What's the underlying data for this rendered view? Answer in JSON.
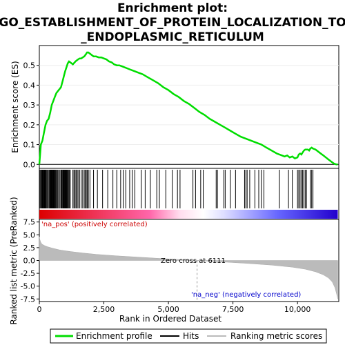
{
  "chart_data": {
    "type": "line",
    "title": "Enrichment plot:\nGO_ESTABLISHMENT_OF_PROTEIN_LOCALIZATION_TO\n_ENDOPLASMIC_RETICULUM",
    "title_lines": [
      "Enrichment plot:",
      "GO_ESTABLISHMENT_OF_PROTEIN_LOCALIZATION_TO",
      "_ENDOPLASMIC_RETICULUM"
    ],
    "top_panel": {
      "ylabel": "Enrichment score (ES)",
      "ylim": [
        -0.02,
        0.6
      ],
      "yticks": [
        0.0,
        0.1,
        0.2,
        0.3,
        0.4,
        0.5
      ],
      "ytick_labels": [
        "0.0",
        "0.1",
        "0.2",
        "0.3",
        "0.4",
        "0.5"
      ],
      "series": [
        {
          "name": "Enrichment profile",
          "color": "#00dd00",
          "x": [
            0,
            60,
            120,
            180,
            240,
            300,
            360,
            420,
            480,
            540,
            600,
            660,
            720,
            780,
            840,
            900,
            960,
            1000,
            1050,
            1100,
            1150,
            1200,
            1300,
            1400,
            1450,
            1500,
            1560,
            1620,
            1680,
            1740,
            1800,
            1850,
            1900,
            2000,
            2100,
            2200,
            2300,
            2400,
            2500,
            2600,
            2700,
            2800,
            2900,
            3000,
            3100,
            3200,
            3300,
            3400,
            3500,
            3600,
            3700,
            3800,
            3900,
            4000,
            4200,
            4400,
            4600,
            4800,
            5000,
            5200,
            5400,
            5600,
            5800,
            6000,
            6200,
            6400,
            6600,
            6800,
            7000,
            7200,
            7400,
            7600,
            7800,
            8000,
            8200,
            8400,
            8600,
            8800,
            9000,
            9200,
            9400,
            9500,
            9600,
            9700,
            9800,
            9900,
            10000,
            10050,
            10100,
            10150,
            10200,
            10250,
            10300,
            10350,
            10400,
            10450,
            10500,
            10550,
            10600,
            10700,
            10800,
            10900,
            11000,
            11100,
            11200,
            11300,
            11400,
            11500,
            11560
          ],
          "y": [
            0.0,
            0.1,
            0.12,
            0.16,
            0.2,
            0.22,
            0.23,
            0.26,
            0.3,
            0.32,
            0.34,
            0.36,
            0.37,
            0.38,
            0.39,
            0.42,
            0.45,
            0.47,
            0.49,
            0.51,
            0.52,
            0.515,
            0.505,
            0.52,
            0.525,
            0.53,
            0.535,
            0.535,
            0.54,
            0.545,
            0.555,
            0.565,
            0.565,
            0.555,
            0.545,
            0.545,
            0.54,
            0.54,
            0.535,
            0.53,
            0.52,
            0.515,
            0.505,
            0.5,
            0.5,
            0.495,
            0.49,
            0.485,
            0.48,
            0.475,
            0.47,
            0.465,
            0.46,
            0.455,
            0.44,
            0.425,
            0.41,
            0.39,
            0.375,
            0.355,
            0.34,
            0.32,
            0.305,
            0.285,
            0.265,
            0.25,
            0.23,
            0.215,
            0.2,
            0.185,
            0.17,
            0.155,
            0.14,
            0.13,
            0.12,
            0.11,
            0.1,
            0.085,
            0.07,
            0.055,
            0.045,
            0.04,
            0.045,
            0.035,
            0.04,
            0.03,
            0.035,
            0.05,
            0.055,
            0.05,
            0.06,
            0.07,
            0.075,
            0.075,
            0.075,
            0.07,
            0.08,
            0.085,
            0.08,
            0.075,
            0.065,
            0.055,
            0.045,
            0.035,
            0.025,
            0.015,
            0.005,
            0.0,
            0.0
          ]
        }
      ]
    },
    "hits_panel": {
      "hit_positions": [
        0,
        30,
        60,
        90,
        110,
        130,
        150,
        170,
        190,
        210,
        230,
        250,
        270,
        300,
        330,
        370,
        400,
        420,
        440,
        460,
        480,
        500,
        520,
        540,
        560,
        580,
        600,
        630,
        660,
        690,
        720,
        760,
        800,
        840,
        870,
        900,
        920,
        940,
        960,
        980,
        1000,
        1020,
        1040,
        1060,
        1080,
        1100,
        1130,
        1160,
        1200,
        1300,
        1340,
        1380,
        1420,
        1460,
        1500,
        1560,
        1620,
        1680,
        1740,
        1780,
        1820,
        1860,
        1900,
        1960,
        2100,
        2250,
        2450,
        2650,
        2850,
        3000,
        3150,
        3250,
        3350,
        3500,
        3600,
        3700,
        3950,
        4100,
        4300,
        4550,
        4650,
        4900,
        5150,
        5350,
        5450,
        5950,
        6050,
        6250,
        6350,
        6850,
        6900,
        7150,
        7200,
        7400,
        7600,
        7950,
        8000,
        8050,
        8150,
        8350,
        8500,
        8600,
        8700,
        9300,
        9650,
        9800,
        10000,
        10050,
        10100,
        10150,
        10200,
        10250,
        10300,
        10350,
        10500,
        10550,
        10600
      ],
      "band_stops": [
        "#dd0000",
        "#ff66aa",
        "#ffddee",
        "#ffffff",
        "#ddddff",
        "#6666ff",
        "#2200cc"
      ]
    },
    "bottom_panel": {
      "ylabel": "Ranked list metric (PreRanked)",
      "ylim": [
        -8,
        8
      ],
      "yticks": [
        7.5,
        5.0,
        2.5,
        0.0,
        -2.5,
        -5.0,
        -7.5
      ],
      "ytick_labels": [
        "7.5",
        "5.0",
        "2.5",
        "0.0",
        "-2.5",
        "-5.0",
        "-7.5"
      ],
      "metric_x": [
        0,
        20,
        50,
        100,
        200,
        300,
        500,
        800,
        1200,
        1700,
        2200,
        3000,
        4000,
        5000,
        6111,
        7000,
        8000,
        9000,
        9800,
        10300,
        10700,
        11000,
        11200,
        11350,
        11450,
        11520,
        11560
      ],
      "metric_y": [
        4.6,
        4.1,
        3.6,
        3.2,
        2.9,
        2.7,
        2.4,
        2.05,
        1.75,
        1.45,
        1.2,
        0.9,
        0.6,
        0.3,
        0.0,
        -0.25,
        -0.55,
        -0.9,
        -1.3,
        -1.7,
        -2.2,
        -2.8,
        -3.4,
        -4.2,
        -5.3,
        -6.6,
        -7.5
      ],
      "pos_label": "'na_pos' (positively correlated)",
      "neg_label": "'na_neg' (negatively correlated)",
      "zero_cross_label": "Zero cross at 6111",
      "zero_cross": 6111
    },
    "xlabel": "Rank in Ordered Dataset",
    "xlim": [
      0,
      11600
    ],
    "xticks": [
      0,
      2500,
      5000,
      7500,
      10000
    ],
    "xtick_labels": [
      "0",
      "2,500",
      "5,000",
      "7,500",
      "10,000"
    ],
    "legend": {
      "placement": "bottom",
      "items": [
        {
          "label": "Enrichment profile",
          "color": "#00dd00"
        },
        {
          "label": "Hits",
          "color": "#000000"
        },
        {
          "label": "Ranking metric scores",
          "color": "#bbbbbb"
        }
      ]
    }
  }
}
